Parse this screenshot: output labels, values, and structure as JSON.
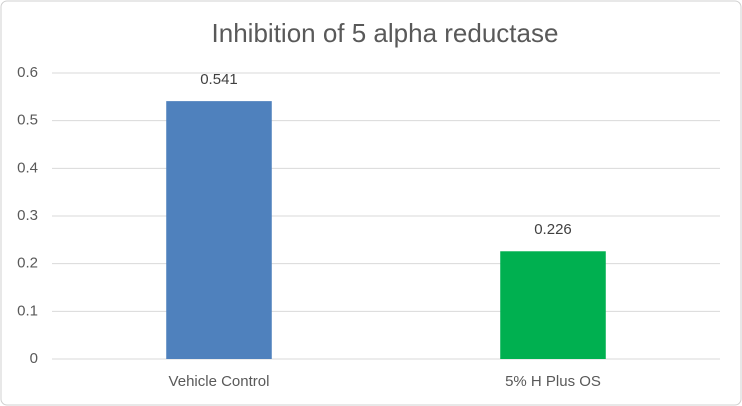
{
  "chart_data": {
    "type": "bar",
    "title": "Inhibition of 5 alpha reductase",
    "categories": [
      "Vehicle Control",
      "5% H Plus OS"
    ],
    "values": [
      0.541,
      0.226
    ],
    "colors": [
      "#4f81bd",
      "#00b050"
    ],
    "ylim": [
      0,
      0.6
    ],
    "yticks": [
      0,
      0.1,
      0.2,
      0.3,
      0.4,
      0.5,
      0.6
    ],
    "grid": true
  }
}
